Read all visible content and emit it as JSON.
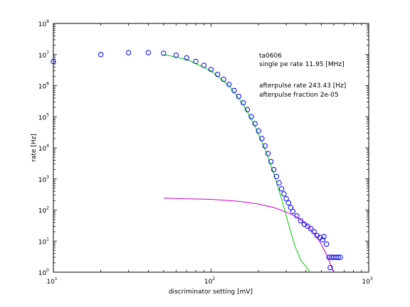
{
  "chart_data": {
    "type": "scatter",
    "xlabel": "discriminator setting [mV]",
    "ylabel": "rate [Hz]",
    "xscale": "log",
    "yscale": "log",
    "xlim": [
      10,
      1000
    ],
    "ylim": [
      1,
      100000000
    ],
    "x_ticks": [
      {
        "base": "10",
        "exp": "1",
        "value": 10
      },
      {
        "base": "10",
        "exp": "2",
        "value": 100
      },
      {
        "base": "10",
        "exp": "3",
        "value": 1000
      }
    ],
    "y_ticks": [
      {
        "base": "10",
        "exp": "0",
        "value": 1
      },
      {
        "base": "10",
        "exp": "1",
        "value": 10
      },
      {
        "base": "10",
        "exp": "2",
        "value": 100
      },
      {
        "base": "10",
        "exp": "3",
        "value": 1000
      },
      {
        "base": "10",
        "exp": "4",
        "value": 10000
      },
      {
        "base": "10",
        "exp": "5",
        "value": 100000
      },
      {
        "base": "10",
        "exp": "6",
        "value": 1000000
      },
      {
        "base": "10",
        "exp": "7",
        "value": 10000000
      },
      {
        "base": "10",
        "exp": "8",
        "value": 100000000
      }
    ],
    "grid": false,
    "annotations": [
      "ta0606",
      "single pe rate 11.95 [MHz]",
      "afterpulse rate 243.43 [Hz]",
      "afterpulse fraction 2e-05"
    ],
    "series": [
      {
        "marker": "circle",
        "color": "#0000ff",
        "points": [
          [
            10,
            6000000
          ],
          [
            20,
            10000000
          ],
          [
            30,
            11500000
          ],
          [
            40,
            11500000
          ],
          [
            50,
            11000000
          ],
          [
            60,
            9500000
          ],
          [
            70,
            7800000
          ],
          [
            80,
            6000000
          ],
          [
            90,
            4500000
          ],
          [
            100,
            3300000
          ],
          [
            110,
            2300000
          ],
          [
            120,
            1600000
          ],
          [
            130,
            1100000
          ],
          [
            140,
            700000
          ],
          [
            150,
            450000
          ],
          [
            160,
            280000
          ],
          [
            170,
            170000
          ],
          [
            180,
            100000
          ],
          [
            190,
            60000
          ],
          [
            200,
            35000
          ],
          [
            210,
            20000
          ],
          [
            220,
            11500
          ],
          [
            230,
            6500
          ],
          [
            240,
            3600
          ],
          [
            250,
            2000
          ],
          [
            260,
            1200
          ],
          [
            270,
            750
          ],
          [
            280,
            480
          ],
          [
            290,
            330
          ],
          [
            300,
            230
          ],
          [
            310,
            170
          ],
          [
            320,
            120
          ],
          [
            330,
            90
          ],
          [
            350,
            65
          ],
          [
            370,
            45
          ],
          [
            390,
            35
          ],
          [
            410,
            30
          ],
          [
            430,
            25
          ],
          [
            450,
            20
          ],
          [
            470,
            15
          ],
          [
            490,
            13
          ],
          [
            510,
            11
          ],
          [
            520,
            14
          ],
          [
            540,
            8
          ],
          [
            560,
            3
          ],
          [
            570,
            1.4
          ],
          [
            580,
            3
          ],
          [
            600,
            3
          ],
          [
            620,
            3
          ],
          [
            640,
            3
          ],
          [
            660,
            3
          ]
        ]
      },
      {
        "marker": "none",
        "color": "#00cc00",
        "points": [
          [
            50,
            10000000
          ],
          [
            70,
            7000000
          ],
          [
            100,
            3000000
          ],
          [
            130,
            1000000
          ],
          [
            160,
            250000
          ],
          [
            190,
            50000
          ],
          [
            220,
            9000
          ],
          [
            250,
            1500
          ],
          [
            280,
            230
          ],
          [
            310,
            35
          ],
          [
            340,
            7
          ],
          [
            370,
            2.5
          ],
          [
            400,
            1.5
          ],
          [
            425,
            1
          ]
        ]
      },
      {
        "marker": "none",
        "color": "#cc00cc",
        "points": [
          [
            50,
            240
          ],
          [
            100,
            220
          ],
          [
            150,
            190
          ],
          [
            200,
            155
          ],
          [
            250,
            120
          ],
          [
            300,
            85
          ],
          [
            350,
            60
          ],
          [
            400,
            35
          ],
          [
            450,
            18
          ],
          [
            500,
            8
          ],
          [
            550,
            3
          ],
          [
            580,
            1.5
          ],
          [
            600,
            1
          ]
        ]
      }
    ]
  }
}
